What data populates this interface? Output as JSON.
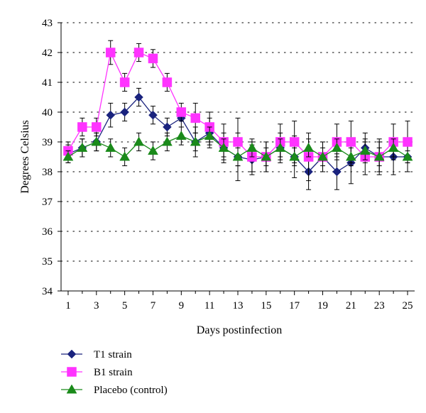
{
  "chart_data": {
    "type": "line",
    "title": "",
    "xlabel": "Days postinfection",
    "ylabel": "Degrees Celsius",
    "x": [
      1,
      2,
      3,
      4,
      5,
      6,
      7,
      8,
      9,
      10,
      11,
      12,
      13,
      14,
      15,
      16,
      17,
      18,
      19,
      20,
      21,
      22,
      23,
      24,
      25
    ],
    "x_tick_labels": [
      "1",
      "3",
      "5",
      "7",
      "9",
      "11",
      "13",
      "15",
      "17",
      "19",
      "21",
      "23",
      "25"
    ],
    "x_tick_values": [
      1,
      3,
      5,
      7,
      9,
      11,
      13,
      15,
      17,
      19,
      21,
      23,
      25
    ],
    "xlim": [
      0.5,
      25.5
    ],
    "ylim": [
      34,
      43
    ],
    "y_ticks": [
      34,
      35,
      36,
      37,
      38,
      39,
      40,
      41,
      42,
      43
    ],
    "y_tick_labels": [
      "34",
      "35",
      "36",
      "37",
      "38",
      "39",
      "40",
      "41",
      "42",
      "43"
    ],
    "grid": "horizontal dotted",
    "legend_position": "bottom-left",
    "series": [
      {
        "name": "T1 strain",
        "color": "#1a237e",
        "marker": "diamond",
        "values": [
          38.6,
          38.8,
          39.0,
          39.9,
          40.0,
          40.5,
          39.9,
          39.5,
          39.8,
          39.0,
          39.3,
          38.8,
          38.5,
          38.4,
          38.5,
          38.8,
          38.5,
          38.0,
          38.5,
          38.0,
          38.3,
          38.8,
          38.5,
          38.5,
          38.5
        ],
        "errors": [
          0.3,
          0.3,
          0.3,
          0.4,
          0.3,
          0.3,
          0.3,
          0.3,
          0.3,
          0.5,
          0.5,
          0.5,
          0.8,
          0.5,
          0.5,
          0.5,
          0.7,
          0.6,
          0.5,
          0.6,
          0.7,
          0.5,
          0.5,
          0.6,
          0.5
        ]
      },
      {
        "name": "B1 strain",
        "color": "#ff33ff",
        "marker": "square",
        "values": [
          38.7,
          39.5,
          39.5,
          42.0,
          41.0,
          42.0,
          41.8,
          41.0,
          40.0,
          39.8,
          39.5,
          39.0,
          39.0,
          38.5,
          38.5,
          39.0,
          39.0,
          38.5,
          38.5,
          39.0,
          39.0,
          38.5,
          38.5,
          39.0,
          39.0
        ],
        "errors": [
          0.3,
          0.3,
          0.3,
          0.4,
          0.3,
          0.3,
          0.3,
          0.3,
          0.3,
          0.5,
          0.5,
          0.6,
          0.8,
          0.5,
          0.5,
          0.6,
          0.7,
          0.8,
          0.5,
          0.6,
          0.7,
          0.6,
          0.6,
          0.6,
          0.7
        ]
      },
      {
        "name": "Placebo (control)",
        "color": "#1a8a1a",
        "marker": "triangle",
        "values": [
          38.5,
          38.8,
          39.0,
          38.8,
          38.5,
          39.0,
          38.7,
          39.0,
          39.2,
          39.0,
          39.2,
          38.8,
          38.5,
          38.8,
          38.5,
          38.8,
          38.5,
          38.8,
          38.5,
          38.8,
          38.5,
          38.7,
          38.5,
          38.8,
          38.5
        ],
        "errors": [
          0.2,
          0.3,
          0.3,
          0.3,
          0.3,
          0.3,
          0.3,
          0.3,
          0.3,
          0.3,
          0.3,
          0.3,
          0.3,
          0.3,
          0.3,
          0.3,
          0.3,
          0.3,
          0.3,
          0.3,
          0.3,
          0.3,
          0.3,
          0.3,
          0.2
        ]
      }
    ]
  }
}
